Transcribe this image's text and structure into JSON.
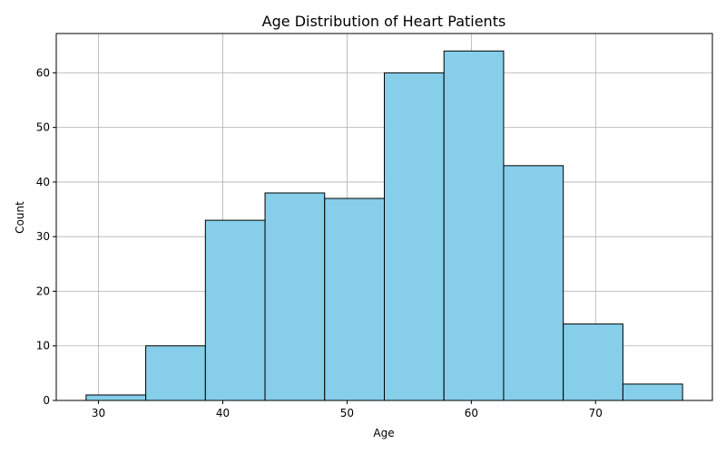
{
  "chart_data": {
    "type": "bar",
    "title": "Age Distribution of Heart Patients",
    "xlabel": "Age",
    "ylabel": "Count",
    "bin_edges": [
      29.0,
      33.8,
      38.6,
      43.4,
      48.2,
      53.0,
      57.8,
      62.6,
      67.4,
      72.2,
      77.0
    ],
    "values": [
      1,
      10,
      33,
      38,
      37,
      60,
      64,
      43,
      14,
      3
    ],
    "xlim": [
      26.6,
      79.4
    ],
    "ylim": [
      0,
      67.2
    ],
    "xticks": [
      30,
      40,
      50,
      60,
      70
    ],
    "yticks": [
      0,
      10,
      20,
      30,
      40,
      50,
      60
    ],
    "xtick_labels": [
      "30",
      "40",
      "50",
      "60",
      "70"
    ],
    "ytick_labels": [
      "0",
      "10",
      "20",
      "30",
      "40",
      "50",
      "60"
    ],
    "grid": true,
    "bar_color": "#87ceeb",
    "edge_color": "#000000",
    "grid_color": "#b0b0b0"
  }
}
